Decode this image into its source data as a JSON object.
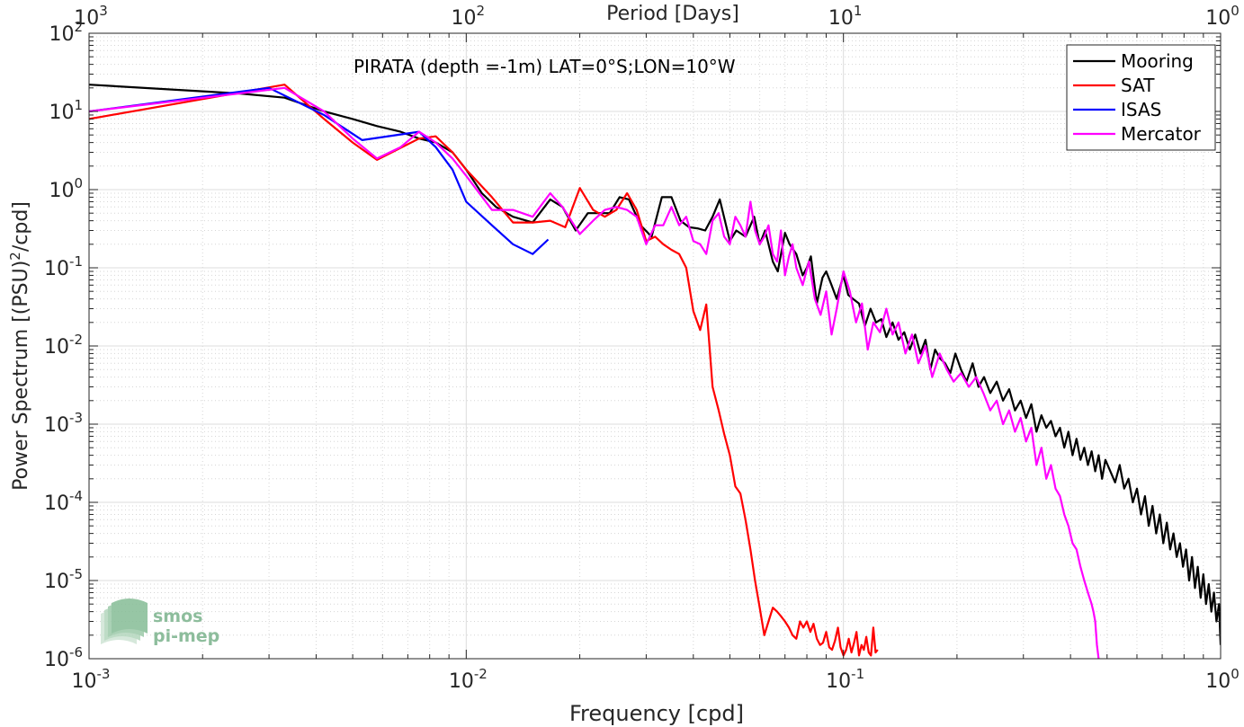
{
  "chart_data": {
    "type": "line",
    "title": "",
    "annotation": "PIRATA (depth =-1m) LAT=0°S;LON=10°W",
    "xlabel": "Frequency [cpd]",
    "ylabel": "Power Spectrum [(PSU)",
    "ylabel_sup": "2",
    "ylabel_tail": "/cpd]",
    "x2label": "Period [Days]",
    "x_scale": "log",
    "y_scale": "log",
    "xlim": [
      0.001,
      1
    ],
    "ylim": [
      1e-06,
      100
    ],
    "grid": true,
    "legend_position": "top-right",
    "x_ticks": [
      {
        "value": 0.001,
        "base": "10",
        "exp": "-3"
      },
      {
        "value": 0.01,
        "base": "10",
        "exp": "-2"
      },
      {
        "value": 0.1,
        "base": "10",
        "exp": "-1"
      },
      {
        "value": 1,
        "base": "10",
        "exp": "0"
      }
    ],
    "x2_ticks": [
      {
        "value": 0.001,
        "base": "10",
        "exp": "3"
      },
      {
        "value": 0.01,
        "base": "10",
        "exp": "2"
      },
      {
        "value": 0.1,
        "base": "10",
        "exp": "1"
      },
      {
        "value": 1,
        "base": "10",
        "exp": "0"
      }
    ],
    "y_ticks": [
      {
        "value": 100,
        "base": "10",
        "exp": "2"
      },
      {
        "value": 10,
        "base": "10",
        "exp": "1"
      },
      {
        "value": 1,
        "base": "10",
        "exp": "0"
      },
      {
        "value": 0.1,
        "base": "10",
        "exp": "-1"
      },
      {
        "value": 0.01,
        "base": "10",
        "exp": "-2"
      },
      {
        "value": 0.001,
        "base": "10",
        "exp": "-3"
      },
      {
        "value": 0.0001,
        "base": "10",
        "exp": "-4"
      },
      {
        "value": 1e-05,
        "base": "10",
        "exp": "-5"
      },
      {
        "value": 1e-06,
        "base": "10",
        "exp": "-6"
      }
    ],
    "series": [
      {
        "name": "Mooring",
        "color": "#000000",
        "x": [
          0.001,
          0.0025,
          0.0033,
          0.0042,
          0.005,
          0.0058,
          0.0067,
          0.0075,
          0.0083,
          0.0092,
          0.01,
          0.011,
          0.012,
          0.0133,
          0.015,
          0.0167,
          0.018,
          0.0195,
          0.021,
          0.0225,
          0.024,
          0.0255,
          0.027,
          0.029,
          0.031,
          0.033,
          0.035,
          0.037,
          0.039,
          0.041,
          0.043,
          0.045,
          0.047,
          0.05,
          0.052,
          0.055,
          0.058,
          0.06,
          0.062,
          0.065,
          0.067,
          0.07,
          0.072,
          0.075,
          0.078,
          0.08,
          0.082,
          0.085,
          0.088,
          0.09,
          0.093,
          0.096,
          0.1,
          0.103,
          0.106,
          0.11,
          0.114,
          0.118,
          0.122,
          0.126,
          0.13,
          0.135,
          0.14,
          0.145,
          0.15,
          0.155,
          0.16,
          0.165,
          0.17,
          0.175,
          0.18,
          0.186,
          0.192,
          0.198,
          0.205,
          0.212,
          0.22,
          0.228,
          0.236,
          0.245,
          0.255,
          0.265,
          0.275,
          0.285,
          0.295,
          0.305,
          0.315,
          0.325,
          0.335,
          0.345,
          0.355,
          0.365,
          0.375,
          0.385,
          0.395,
          0.405,
          0.415,
          0.425,
          0.435,
          0.445,
          0.455,
          0.465,
          0.475,
          0.485,
          0.495,
          0.51,
          0.525,
          0.54,
          0.555,
          0.57,
          0.585,
          0.6,
          0.615,
          0.63,
          0.645,
          0.66,
          0.675,
          0.69,
          0.705,
          0.72,
          0.735,
          0.75,
          0.765,
          0.78,
          0.795,
          0.81,
          0.825,
          0.84,
          0.855,
          0.87,
          0.885,
          0.9,
          0.915,
          0.93,
          0.945,
          0.96,
          0.975,
          0.99,
          1.0
        ],
        "y": [
          22,
          17,
          15,
          10,
          8,
          6.5,
          5.5,
          4.5,
          4,
          3,
          1.8,
          0.9,
          0.6,
          0.45,
          0.38,
          0.75,
          0.6,
          0.3,
          0.5,
          0.5,
          0.5,
          0.8,
          0.75,
          0.35,
          0.25,
          0.8,
          0.8,
          0.4,
          0.33,
          0.32,
          0.3,
          0.45,
          0.75,
          0.22,
          0.3,
          0.25,
          0.45,
          0.2,
          0.3,
          0.12,
          0.09,
          0.28,
          0.2,
          0.15,
          0.08,
          0.1,
          0.14,
          0.035,
          0.075,
          0.09,
          0.06,
          0.04,
          0.08,
          0.045,
          0.04,
          0.035,
          0.018,
          0.03,
          0.02,
          0.022,
          0.013,
          0.02,
          0.012,
          0.015,
          0.009,
          0.014,
          0.008,
          0.012,
          0.005,
          0.009,
          0.007,
          0.006,
          0.0045,
          0.008,
          0.005,
          0.0035,
          0.006,
          0.003,
          0.004,
          0.0025,
          0.0035,
          0.002,
          0.0028,
          0.0015,
          0.002,
          0.0012,
          0.0018,
          0.0008,
          0.0013,
          0.0009,
          0.0011,
          0.0007,
          0.0009,
          0.0005,
          0.0008,
          0.0004,
          0.00065,
          0.00035,
          0.0005,
          0.0003,
          0.00045,
          0.00025,
          0.0004,
          0.0002,
          0.00035,
          0.00025,
          0.00018,
          0.0003,
          0.00015,
          0.0002,
          0.0001,
          0.00015,
          7e-05,
          0.00012,
          5e-05,
          9e-05,
          4e-05,
          7e-05,
          3e-05,
          5.5e-05,
          2.5e-05,
          4e-05,
          2e-05,
          3e-05,
          1.5e-05,
          2.5e-05,
          1e-05,
          2e-05,
          8e-06,
          1.5e-05,
          6e-06,
          1.2e-05,
          5e-06,
          9e-06,
          4e-06,
          7e-06,
          3e-06,
          5e-06,
          1.5e-06
        ]
      },
      {
        "name": "SAT",
        "color": "#ff0000",
        "x": [
          0.001,
          0.0033,
          0.0042,
          0.005,
          0.0058,
          0.0075,
          0.0083,
          0.0092,
          0.01,
          0.0117,
          0.0133,
          0.015,
          0.0167,
          0.0183,
          0.02,
          0.0217,
          0.0233,
          0.025,
          0.0267,
          0.0283,
          0.03,
          0.0317,
          0.0333,
          0.035,
          0.0367,
          0.0383,
          0.04,
          0.0417,
          0.0433,
          0.045,
          0.0467,
          0.0483,
          0.05,
          0.0517,
          0.0533,
          0.055,
          0.0567,
          0.0583,
          0.06,
          0.0617,
          0.0633,
          0.065,
          0.0667,
          0.0683,
          0.07,
          0.0717,
          0.0733,
          0.075,
          0.0767,
          0.0783,
          0.08,
          0.0817,
          0.0833,
          0.085,
          0.0867,
          0.0883,
          0.09,
          0.0917,
          0.0933,
          0.095,
          0.0967,
          0.0983,
          0.1,
          0.1017,
          0.1033,
          0.105,
          0.1067,
          0.1083,
          0.11,
          0.1117,
          0.1133,
          0.115,
          0.1167,
          0.1183,
          0.12,
          0.1217,
          0.1233
        ],
        "y": [
          8,
          22,
          8,
          4,
          2.4,
          4.5,
          4.8,
          3,
          1.8,
          0.8,
          0.38,
          0.38,
          0.4,
          0.33,
          1.05,
          0.55,
          0.45,
          0.55,
          0.9,
          0.55,
          0.22,
          0.25,
          0.2,
          0.17,
          0.15,
          0.1,
          0.028,
          0.016,
          0.034,
          0.003,
          0.0015,
          0.00075,
          0.0004,
          0.00016,
          0.00013,
          6e-05,
          2.5e-05,
          1e-05,
          4.5e-06,
          2e-06,
          3e-06,
          4.5e-06,
          4e-06,
          3.5e-06,
          3e-06,
          2.5e-06,
          2e-06,
          1.8e-06,
          3e-06,
          2.5e-06,
          3e-06,
          2.2e-06,
          2.8e-06,
          1.8e-06,
          1.5e-06,
          1.6e-06,
          2.2e-06,
          1.4e-06,
          1.3e-06,
          1.7e-06,
          2.5e-06,
          1.4e-06,
          1.1e-06,
          1.3e-06,
          1.8e-06,
          1.2e-06,
          1.6e-06,
          2.2e-06,
          1.1e-06,
          1.5e-06,
          1.3e-06,
          1.9e-06,
          1.2e-06,
          1.1e-06,
          2.5e-06,
          1.2e-06,
          1.3e-06
        ]
      },
      {
        "name": "ISAS",
        "color": "#0000ff",
        "x": [
          0.001,
          0.003,
          0.0042,
          0.0053,
          0.0075,
          0.0083,
          0.0092,
          0.01,
          0.0117,
          0.0133,
          0.015,
          0.0165
        ],
        "y": [
          10,
          20,
          9,
          4.3,
          5.5,
          3.5,
          1.8,
          0.7,
          0.35,
          0.2,
          0.15,
          0.23
        ]
      },
      {
        "name": "Mercator",
        "color": "#ff00ff",
        "x": [
          0.001,
          0.0025,
          0.0033,
          0.0042,
          0.005,
          0.0058,
          0.0067,
          0.0075,
          0.0083,
          0.0092,
          0.01,
          0.0117,
          0.0133,
          0.015,
          0.0167,
          0.018,
          0.02,
          0.0217,
          0.0233,
          0.025,
          0.0267,
          0.0283,
          0.03,
          0.0317,
          0.0333,
          0.035,
          0.0367,
          0.0383,
          0.04,
          0.0417,
          0.0433,
          0.045,
          0.0467,
          0.0483,
          0.05,
          0.0517,
          0.0533,
          0.055,
          0.0567,
          0.0583,
          0.06,
          0.0617,
          0.0633,
          0.065,
          0.0667,
          0.0683,
          0.07,
          0.0717,
          0.0733,
          0.075,
          0.078,
          0.081,
          0.084,
          0.087,
          0.09,
          0.093,
          0.096,
          0.1,
          0.104,
          0.108,
          0.112,
          0.116,
          0.12,
          0.125,
          0.13,
          0.135,
          0.14,
          0.146,
          0.152,
          0.158,
          0.165,
          0.172,
          0.18,
          0.188,
          0.196,
          0.205,
          0.215,
          0.225,
          0.235,
          0.245,
          0.255,
          0.265,
          0.275,
          0.285,
          0.295,
          0.305,
          0.315,
          0.325,
          0.335,
          0.345,
          0.355,
          0.365,
          0.375,
          0.385,
          0.395,
          0.405,
          0.415,
          0.425,
          0.435,
          0.445,
          0.455,
          0.46,
          0.465,
          0.47,
          0.475
        ],
        "y": [
          10,
          17,
          20,
          10,
          4.5,
          2.5,
          3.5,
          5.5,
          4,
          2.5,
          1.5,
          0.55,
          0.55,
          0.45,
          0.9,
          0.6,
          0.27,
          0.4,
          0.55,
          0.6,
          0.55,
          0.45,
          0.2,
          0.35,
          0.35,
          0.6,
          0.35,
          0.45,
          0.22,
          0.2,
          0.15,
          0.4,
          0.5,
          0.25,
          0.2,
          0.45,
          0.35,
          0.25,
          0.7,
          0.3,
          0.2,
          0.25,
          0.35,
          0.15,
          0.12,
          0.3,
          0.08,
          0.14,
          0.2,
          0.1,
          0.06,
          0.12,
          0.04,
          0.025,
          0.05,
          0.014,
          0.03,
          0.09,
          0.05,
          0.02,
          0.035,
          0.009,
          0.02,
          0.015,
          0.03,
          0.014,
          0.02,
          0.008,
          0.014,
          0.006,
          0.01,
          0.004,
          0.008,
          0.005,
          0.0035,
          0.0045,
          0.003,
          0.004,
          0.0025,
          0.0015,
          0.002,
          0.001,
          0.0015,
          0.0008,
          0.0012,
          0.0006,
          0.0009,
          0.0003,
          0.0005,
          0.0002,
          0.0003,
          0.00015,
          0.00012,
          7e-05,
          5e-05,
          3e-05,
          2.5e-05,
          1.5e-05,
          1e-05,
          7e-06,
          5e-06,
          4e-06,
          3e-06,
          1.5e-06,
          1e-06
        ]
      }
    ]
  },
  "logo": {
    "line1": "smos",
    "line2": "pi-mep"
  }
}
